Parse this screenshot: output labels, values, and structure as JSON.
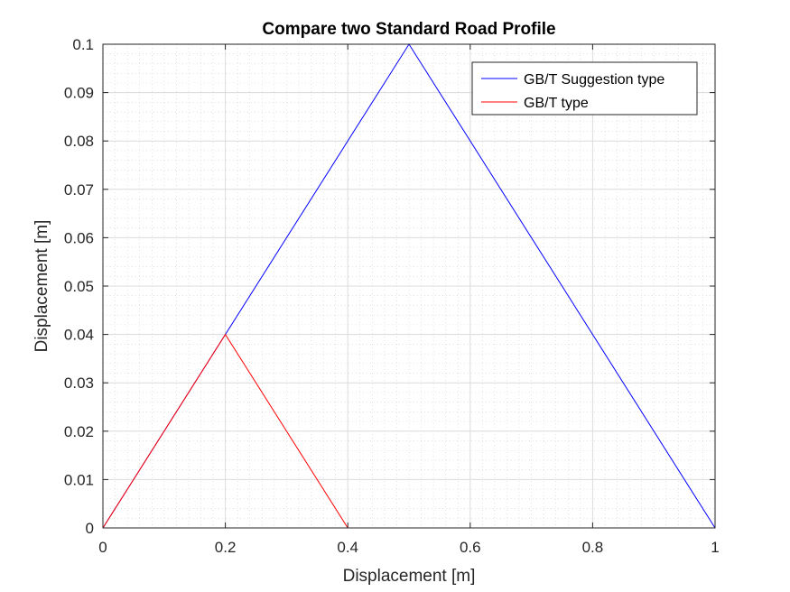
{
  "chart_data": {
    "type": "line",
    "title": "Compare two Standard Road Profile",
    "xlabel": "Displacement [m]",
    "ylabel": "Displacement [m]",
    "xlim": [
      0,
      1
    ],
    "ylim": [
      0,
      0.1
    ],
    "xticks": [
      0,
      0.2,
      0.4,
      0.6,
      0.8,
      1
    ],
    "xtick_labels": [
      "0",
      "0.2",
      "0.4",
      "0.6",
      "0.8",
      "1"
    ],
    "yticks": [
      0,
      0.01,
      0.02,
      0.03,
      0.04,
      0.05,
      0.06,
      0.07,
      0.08,
      0.09,
      0.1
    ],
    "ytick_labels": [
      "0",
      "0.01",
      "0.02",
      "0.03",
      "0.04",
      "0.05",
      "0.06",
      "0.07",
      "0.08",
      "0.09",
      "0.1"
    ],
    "grid": "on, with minor grid",
    "legend_position": "top-right",
    "series": [
      {
        "name": "GB/T Suggestion type",
        "color": "#0000ff",
        "x": [
          0,
          0.5,
          1
        ],
        "y": [
          0,
          0.1,
          0
        ]
      },
      {
        "name": "GB/T type",
        "color": "#ff0000",
        "x": [
          0,
          0.2,
          0.4,
          1
        ],
        "y": [
          0,
          0.04,
          0,
          0
        ]
      }
    ]
  }
}
